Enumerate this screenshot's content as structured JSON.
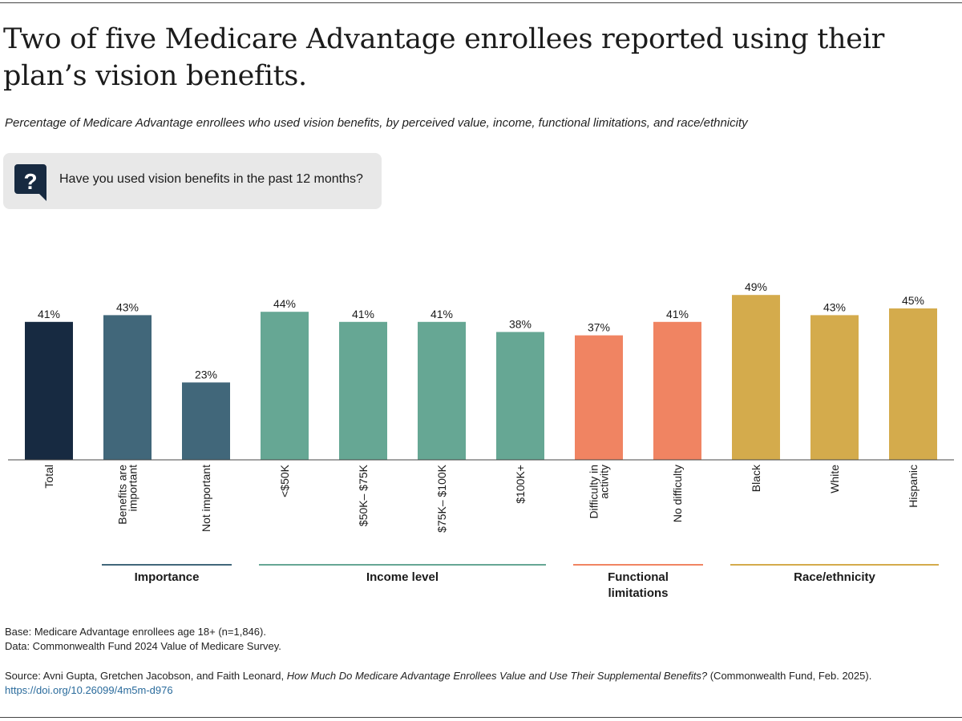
{
  "title": "Two of five Medicare Advantage enrollees reported using their plan’s vision benefits.",
  "subtitle": "Percentage of Medicare Advantage enrollees who used vision benefits, by perceived value, income, functional limitations, and race/ethnicity",
  "question": {
    "icon": "question-bubble-icon",
    "text": "Have you used vision benefits in the past 12 months?"
  },
  "chart_data": {
    "type": "bar",
    "ylim": [
      0,
      50
    ],
    "unit": "%",
    "categories": [
      {
        "label": [
          "Total"
        ],
        "value": 41,
        "group": "total"
      },
      {
        "label": [
          "Benefits are",
          "important"
        ],
        "value": 43,
        "group": "importance"
      },
      {
        "label": [
          "Not important"
        ],
        "value": 23,
        "group": "importance"
      },
      {
        "label": [
          "<$50K"
        ],
        "value": 44,
        "group": "income"
      },
      {
        "label": [
          "$50K– $75K"
        ],
        "value": 41,
        "group": "income"
      },
      {
        "label": [
          "$75K– $100K"
        ],
        "value": 41,
        "group": "income"
      },
      {
        "label": [
          "$100K+"
        ],
        "value": 38,
        "group": "income"
      },
      {
        "label": [
          "Difficulty in",
          "activity"
        ],
        "value": 37,
        "group": "functional"
      },
      {
        "label": [
          "No difficulty"
        ],
        "value": 41,
        "group": "functional"
      },
      {
        "label": [
          "Black"
        ],
        "value": 49,
        "group": "race"
      },
      {
        "label": [
          "White"
        ],
        "value": 43,
        "group": "race"
      },
      {
        "label": [
          "Hispanic"
        ],
        "value": 45,
        "group": "race"
      }
    ],
    "groups": [
      {
        "key": "total",
        "label": [],
        "color": "#172a41"
      },
      {
        "key": "importance",
        "label": [
          "Importance"
        ],
        "color": "#41677a"
      },
      {
        "key": "income",
        "label": [
          "Income level"
        ],
        "color": "#66a794"
      },
      {
        "key": "functional",
        "label": [
          "Functional",
          "limitations"
        ],
        "color": "#f08462"
      },
      {
        "key": "race",
        "label": [
          "Race/ethnicity"
        ],
        "color": "#d4ab4c"
      }
    ]
  },
  "footer": {
    "base": "Base: Medicare Advantage enrollees age 18+ (n=1,846).",
    "data": "Data: Commonwealth Fund 2024 Value of Medicare Survey.",
    "source_prefix": "Source: Avni Gupta, Gretchen Jacobson, and Faith Leonard, ",
    "source_title": "How Much Do Medicare Advantage Enrollees Value and Use Their Supplemental Benefits?",
    "source_suffix": " (Commonwealth Fund, Feb. 2025).",
    "doi": "https://doi.org/10.26099/4m5m-d976"
  }
}
